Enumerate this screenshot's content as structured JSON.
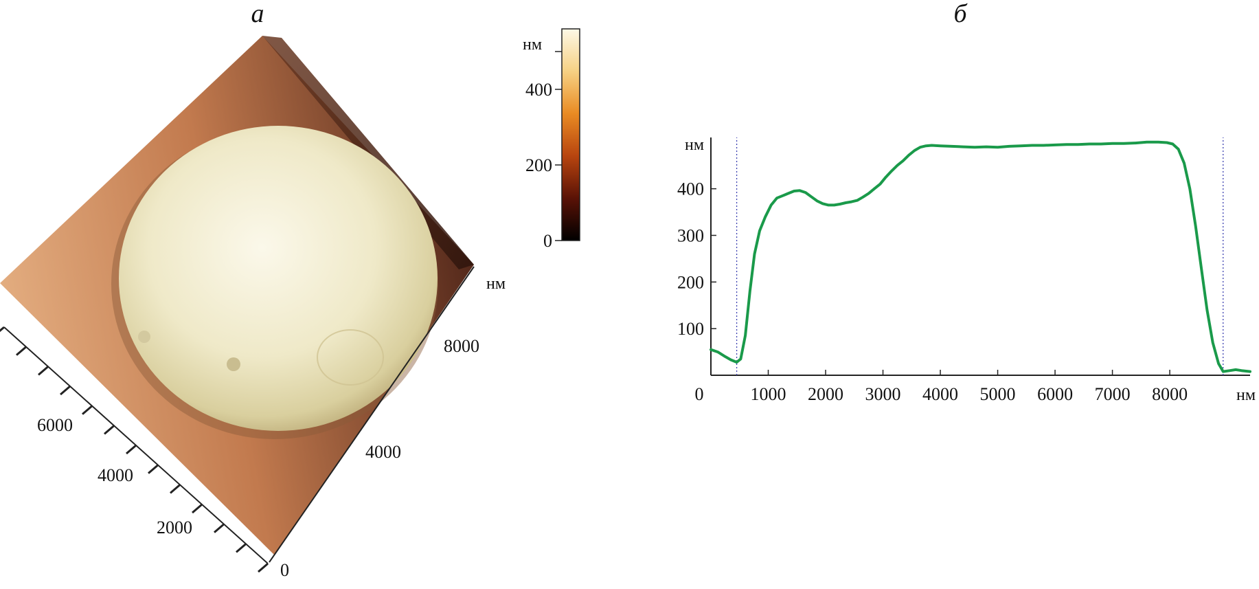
{
  "panels": {
    "a": {
      "label": "а"
    },
    "b": {
      "label": "б"
    }
  },
  "chart_data": [
    {
      "type": "heatmap",
      "description_3d": "afm-3d-surface",
      "colorbar": {
        "unit": "нм",
        "ticks": [
          0,
          200,
          400
        ],
        "range": [
          0,
          560
        ],
        "colormap": [
          "#000000",
          "#5a1206",
          "#b8450f",
          "#e98b23",
          "#f6d184",
          "#fdf8e6"
        ]
      },
      "x_axis": {
        "ticks": [
          0,
          2000,
          4000,
          6000
        ],
        "unit": ""
      },
      "y_axis": {
        "ticks": [
          4000,
          8000
        ],
        "unit": "нм"
      },
      "colors": {
        "substrate_light": "#dba072",
        "substrate_dark": "#5a2a18",
        "droplet": "#e9e3bd"
      }
    },
    {
      "type": "line",
      "xlabel": "нм",
      "ylabel": "нм",
      "xlim": [
        0,
        9400
      ],
      "ylim": [
        0,
        510
      ],
      "x_ticks": [
        0,
        1000,
        2000,
        3000,
        4000,
        5000,
        6000,
        7000,
        8000
      ],
      "y_ticks": [
        100,
        200,
        300,
        400
      ],
      "vertical_markers": [
        450,
        8930
      ],
      "line_color": "#1a9a4a",
      "marker_color": "#3b3fb0",
      "grid": false,
      "series": [
        {
          "x": [
            0,
            120,
            250,
            350,
            450,
            520,
            600,
            680,
            760,
            850,
            950,
            1050,
            1150,
            1250,
            1350,
            1450,
            1550,
            1650,
            1750,
            1850,
            1950,
            2050,
            2150,
            2250,
            2350,
            2450,
            2550,
            2650,
            2750,
            2850,
            2950,
            3050,
            3150,
            3250,
            3350,
            3450,
            3550,
            3650,
            3750,
            3850,
            4000,
            4200,
            4400,
            4600,
            4800,
            5000,
            5200,
            5400,
            5600,
            5800,
            6000,
            6200,
            6400,
            6600,
            6800,
            7000,
            7200,
            7400,
            7600,
            7800,
            7950,
            8050,
            8150,
            8250,
            8350,
            8450,
            8550,
            8650,
            8750,
            8850,
            8930,
            9050,
            9150,
            9250,
            9400
          ],
          "y": [
            55,
            50,
            40,
            33,
            28,
            35,
            85,
            180,
            260,
            310,
            340,
            365,
            380,
            385,
            390,
            395,
            396,
            392,
            383,
            374,
            368,
            365,
            365,
            367,
            370,
            372,
            375,
            382,
            390,
            400,
            410,
            425,
            438,
            450,
            460,
            472,
            482,
            489,
            492,
            493,
            492,
            491,
            490,
            489,
            490,
            489,
            491,
            492,
            493,
            493,
            494,
            495,
            495,
            496,
            496,
            497,
            497,
            498,
            500,
            500,
            499,
            496,
            485,
            455,
            400,
            320,
            230,
            140,
            70,
            25,
            8,
            10,
            12,
            10,
            8
          ]
        }
      ]
    }
  ]
}
